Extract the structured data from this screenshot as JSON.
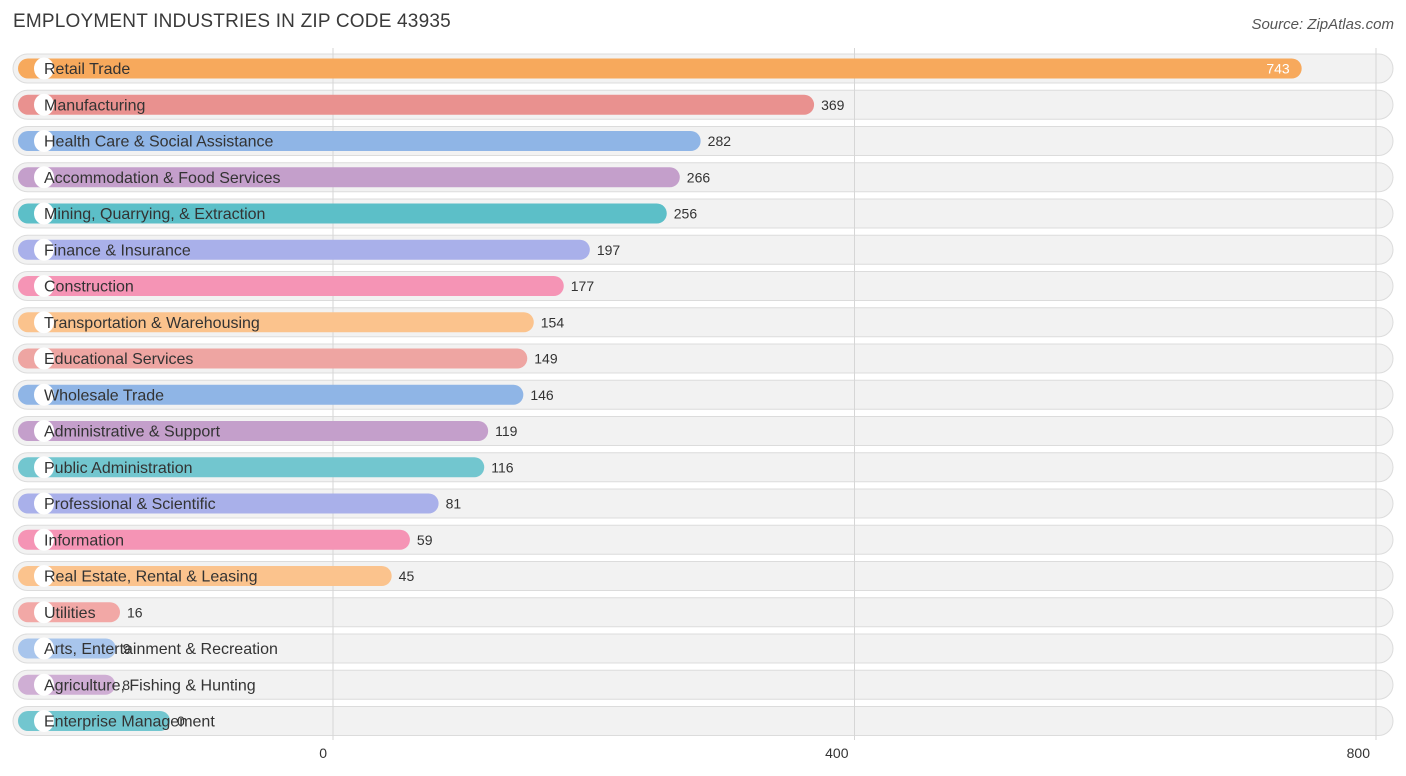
{
  "title": "EMPLOYMENT INDUSTRIES IN ZIP CODE 43935",
  "source": "Source: ZipAtlas.com",
  "chart_data": {
    "type": "bar",
    "orientation": "horizontal",
    "title": "EMPLOYMENT INDUSTRIES IN ZIP CODE 43935",
    "xlim": [
      0,
      800
    ],
    "ticks": [
      0,
      400,
      800
    ],
    "grid": true,
    "categories": [
      "Retail Trade",
      "Manufacturing",
      "Health Care & Social Assistance",
      "Accommodation & Food Services",
      "Mining, Quarrying, & Extraction",
      "Finance & Insurance",
      "Construction",
      "Transportation & Warehousing",
      "Educational Services",
      "Wholesale Trade",
      "Administrative & Support",
      "Public Administration",
      "Professional & Scientific",
      "Information",
      "Real Estate, Rental & Leasing",
      "Utilities",
      "Arts, Entertainment & Recreation",
      "Agriculture, Fishing & Hunting",
      "Enterprise Management"
    ],
    "values": [
      743,
      369,
      282,
      266,
      256,
      197,
      177,
      154,
      149,
      146,
      119,
      116,
      81,
      59,
      45,
      16,
      9,
      8,
      0
    ],
    "colors": [
      "#f7a95c",
      "#e9918f",
      "#8fb5e6",
      "#c49fcb",
      "#5cbfc8",
      "#a9b0ea",
      "#f594b5",
      "#fbc38d",
      "#eea5a2",
      "#8fb5e6",
      "#c49fcb",
      "#72c6cf",
      "#a9b0ea",
      "#f594b5",
      "#fbc38d",
      "#f2a8a6",
      "#a8c5ec",
      "#cfaed4",
      "#72c6cf"
    ]
  }
}
